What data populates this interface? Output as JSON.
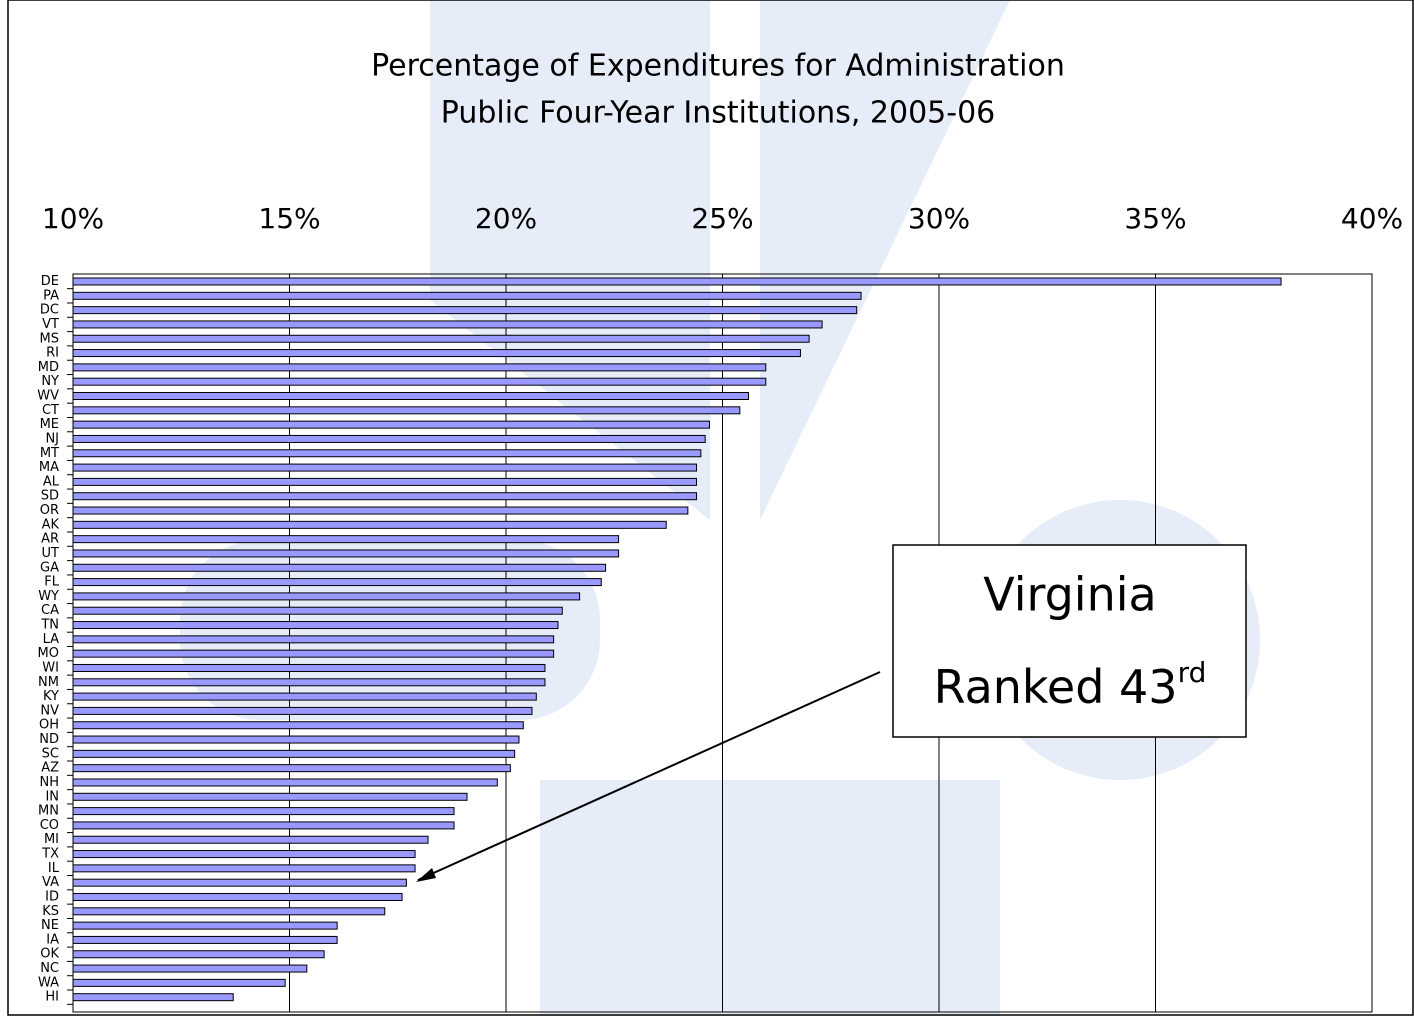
{
  "chart_data": {
    "type": "bar",
    "orientation": "horizontal",
    "title": [
      "Percentage of Expenditures for Administration",
      "Public Four-Year Institutions, 2005-06"
    ],
    "categories": [
      "DE",
      "PA",
      "DC",
      "VT",
      "MS",
      "RI",
      "MD",
      "NY",
      "WV",
      "CT",
      "ME",
      "NJ",
      "MT",
      "MA",
      "AL",
      "SD",
      "OR",
      "AK",
      "AR",
      "UT",
      "GA",
      "FL",
      "WY",
      "CA",
      "TN",
      "LA",
      "MO",
      "WI",
      "NM",
      "KY",
      "NV",
      "OH",
      "ND",
      "SC",
      "AZ",
      "NH",
      "IN",
      "MN",
      "CO",
      "MI",
      "TX",
      "IL",
      "VA",
      "ID",
      "KS",
      "NE",
      "IA",
      "OK",
      "NC",
      "WA",
      "HI"
    ],
    "values": [
      37.9,
      28.2,
      28.1,
      27.3,
      27.0,
      26.8,
      26.0,
      26.0,
      25.6,
      25.4,
      24.7,
      24.6,
      24.5,
      24.4,
      24.4,
      24.4,
      24.2,
      23.7,
      22.6,
      22.6,
      22.3,
      22.2,
      21.7,
      21.3,
      21.2,
      21.1,
      21.1,
      20.9,
      20.9,
      20.7,
      20.6,
      20.4,
      20.3,
      20.2,
      20.1,
      19.8,
      19.1,
      18.8,
      18.8,
      18.2,
      17.9,
      17.9,
      17.7,
      17.6,
      17.2,
      16.1,
      16.1,
      15.8,
      15.4,
      14.9,
      13.7
    ],
    "color": "#9999ff",
    "xlim": [
      10,
      40
    ],
    "xticks": [
      {
        "value": 10,
        "label": "10%"
      },
      {
        "value": 15,
        "label": "15%"
      },
      {
        "value": 20,
        "label": "20%"
      },
      {
        "value": 25,
        "label": "25%"
      },
      {
        "value": 30,
        "label": "30%"
      },
      {
        "value": 35,
        "label": "35%"
      },
      {
        "value": 40,
        "label": "40%"
      }
    ],
    "grid": true,
    "annotation": {
      "lines": [
        "Virginia",
        "Ranked 43"
      ],
      "superscript": "rd"
    }
  }
}
